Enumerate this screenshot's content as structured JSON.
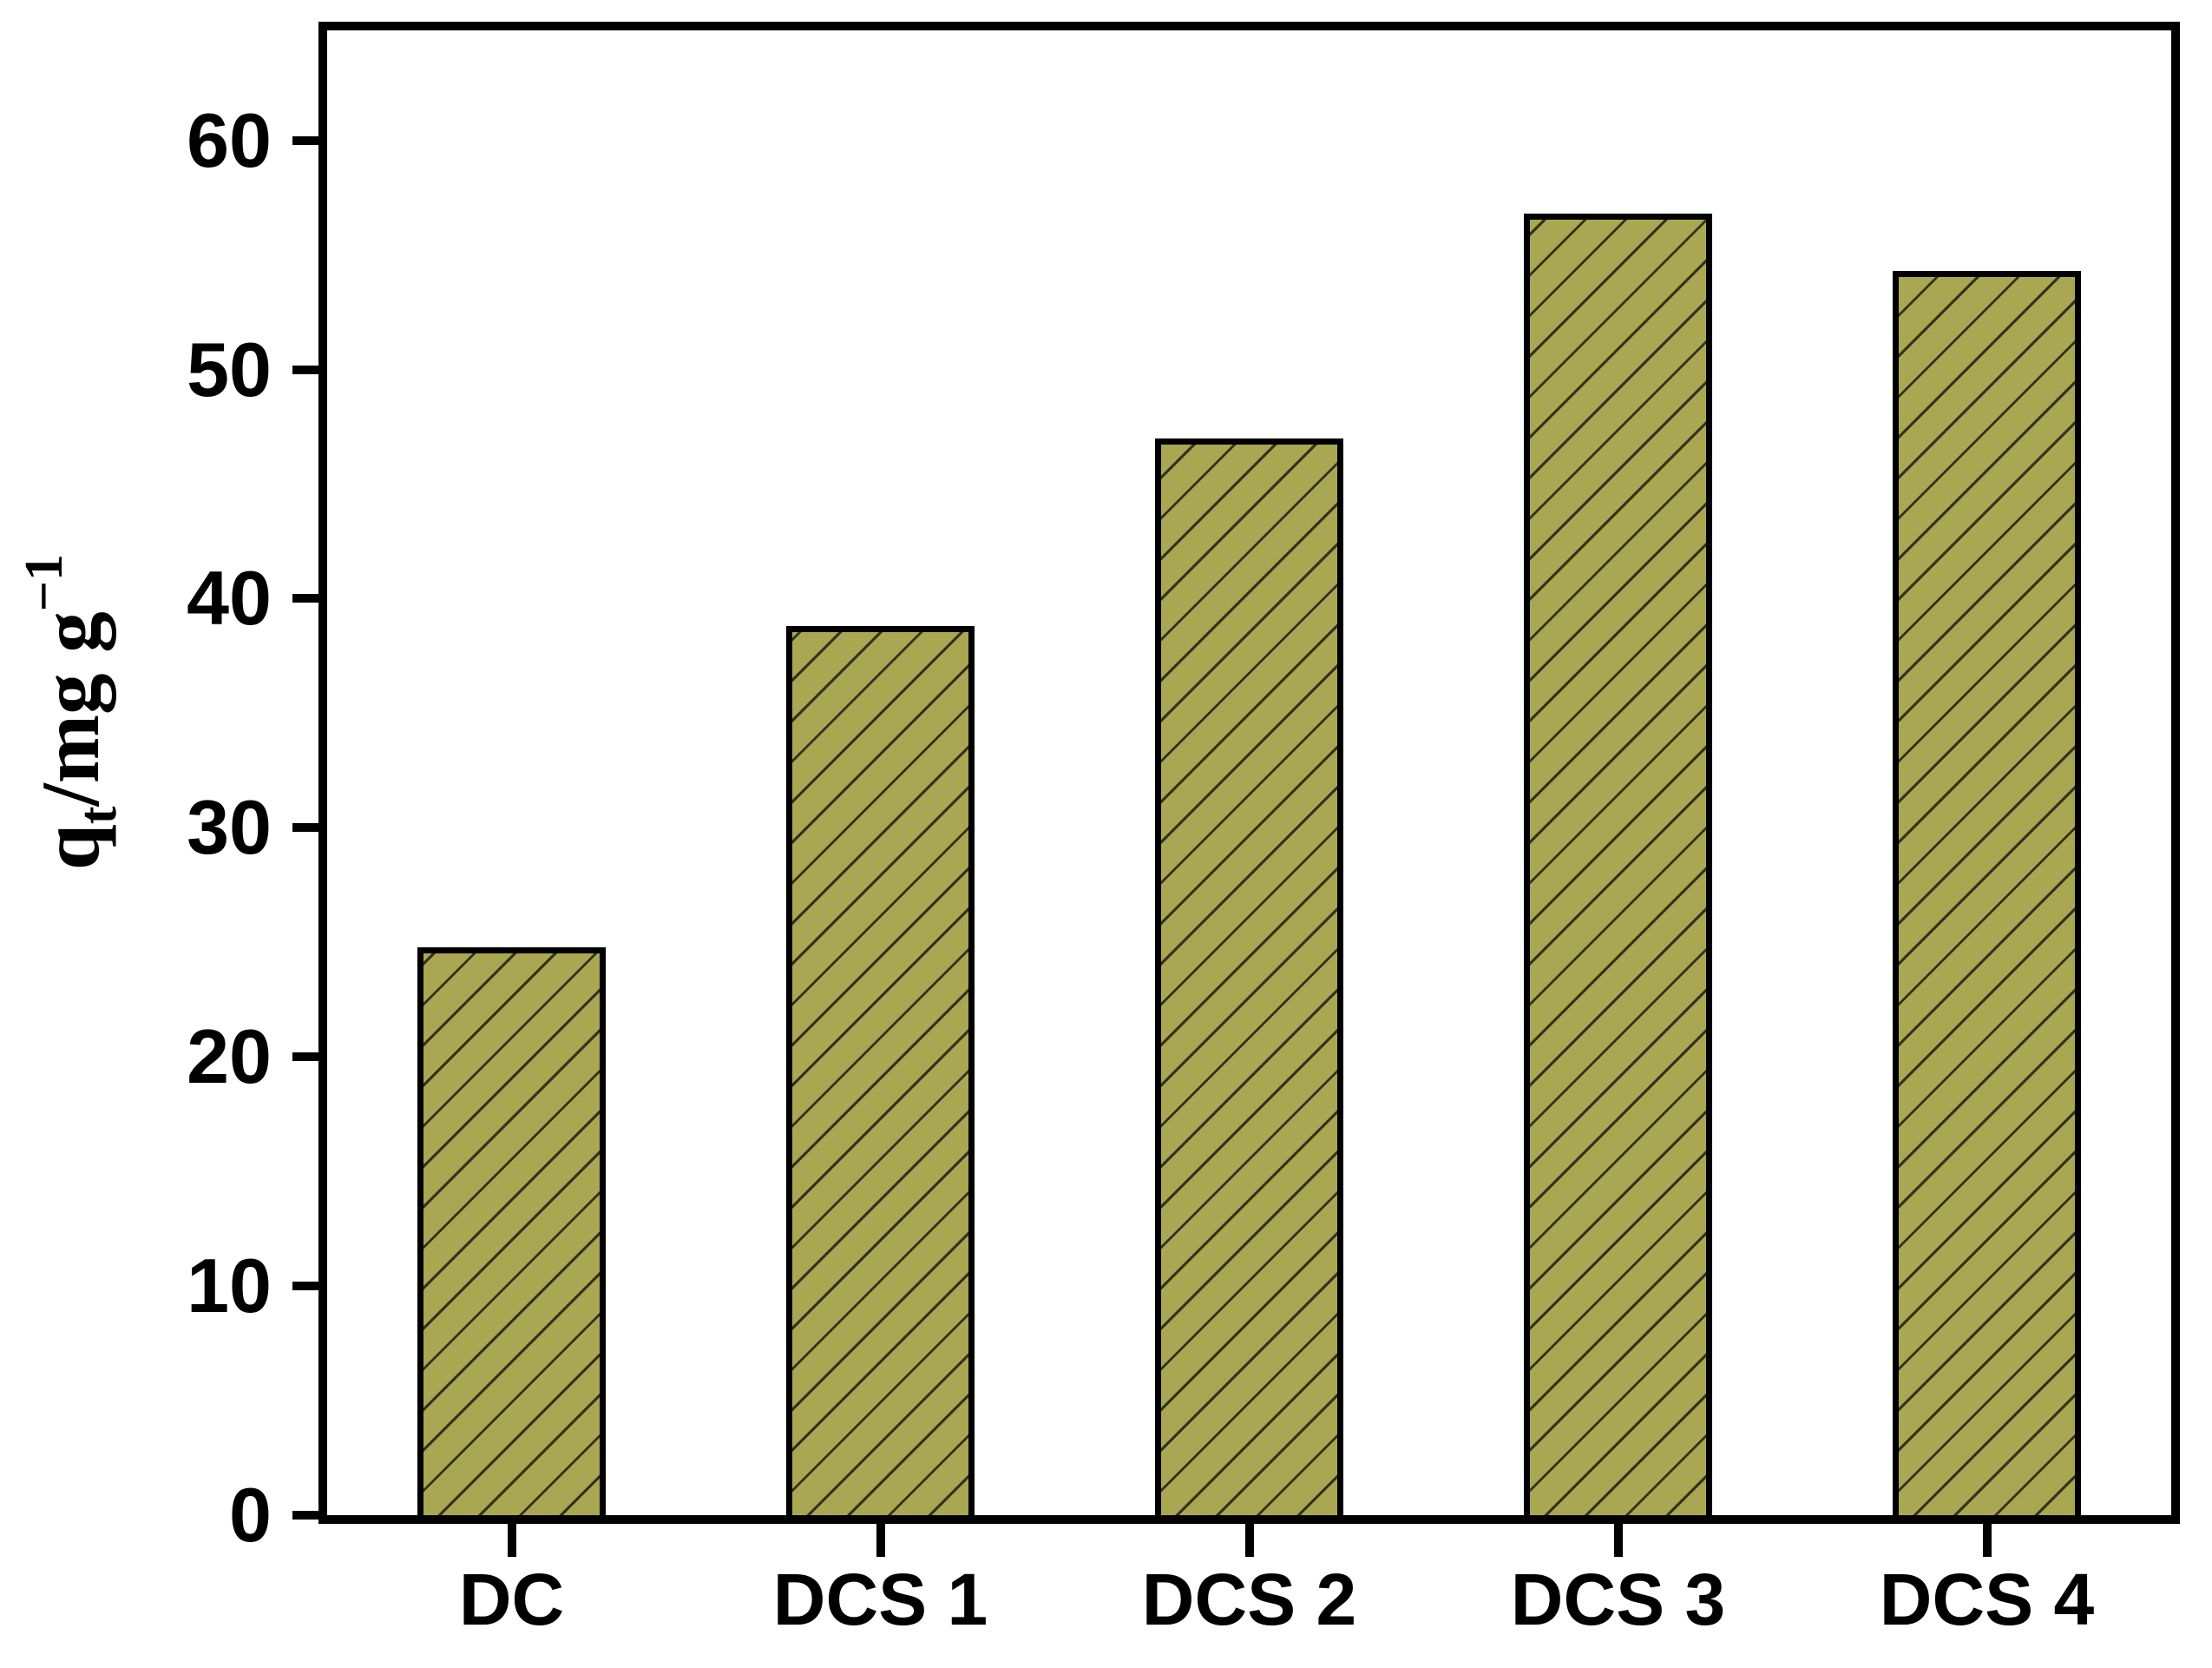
{
  "chart_data": {
    "type": "bar",
    "categories": [
      "DC",
      "DCS 1",
      "DCS 2",
      "DCS 3",
      "DCS 4"
    ],
    "values": [
      24.8,
      38.8,
      47.0,
      56.8,
      54.3
    ],
    "title": "",
    "xlabel": "",
    "ylabel": "qt/mg g−1",
    "ylabel_parts": {
      "base": "q",
      "sub": "t",
      "mid": "/mg g",
      "sup": "−1"
    },
    "ylim": [
      0,
      64.8
    ],
    "yticks": [
      0,
      10,
      20,
      30,
      40,
      50,
      60
    ],
    "grid": false,
    "legend": false,
    "bar_color": "#a9a751",
    "hatch_pattern": "forward-diagonal",
    "hatch_color": "#33321e",
    "bar_border_color": "#000000",
    "axis_color": "#000000",
    "background_color": "#ffffff"
  }
}
